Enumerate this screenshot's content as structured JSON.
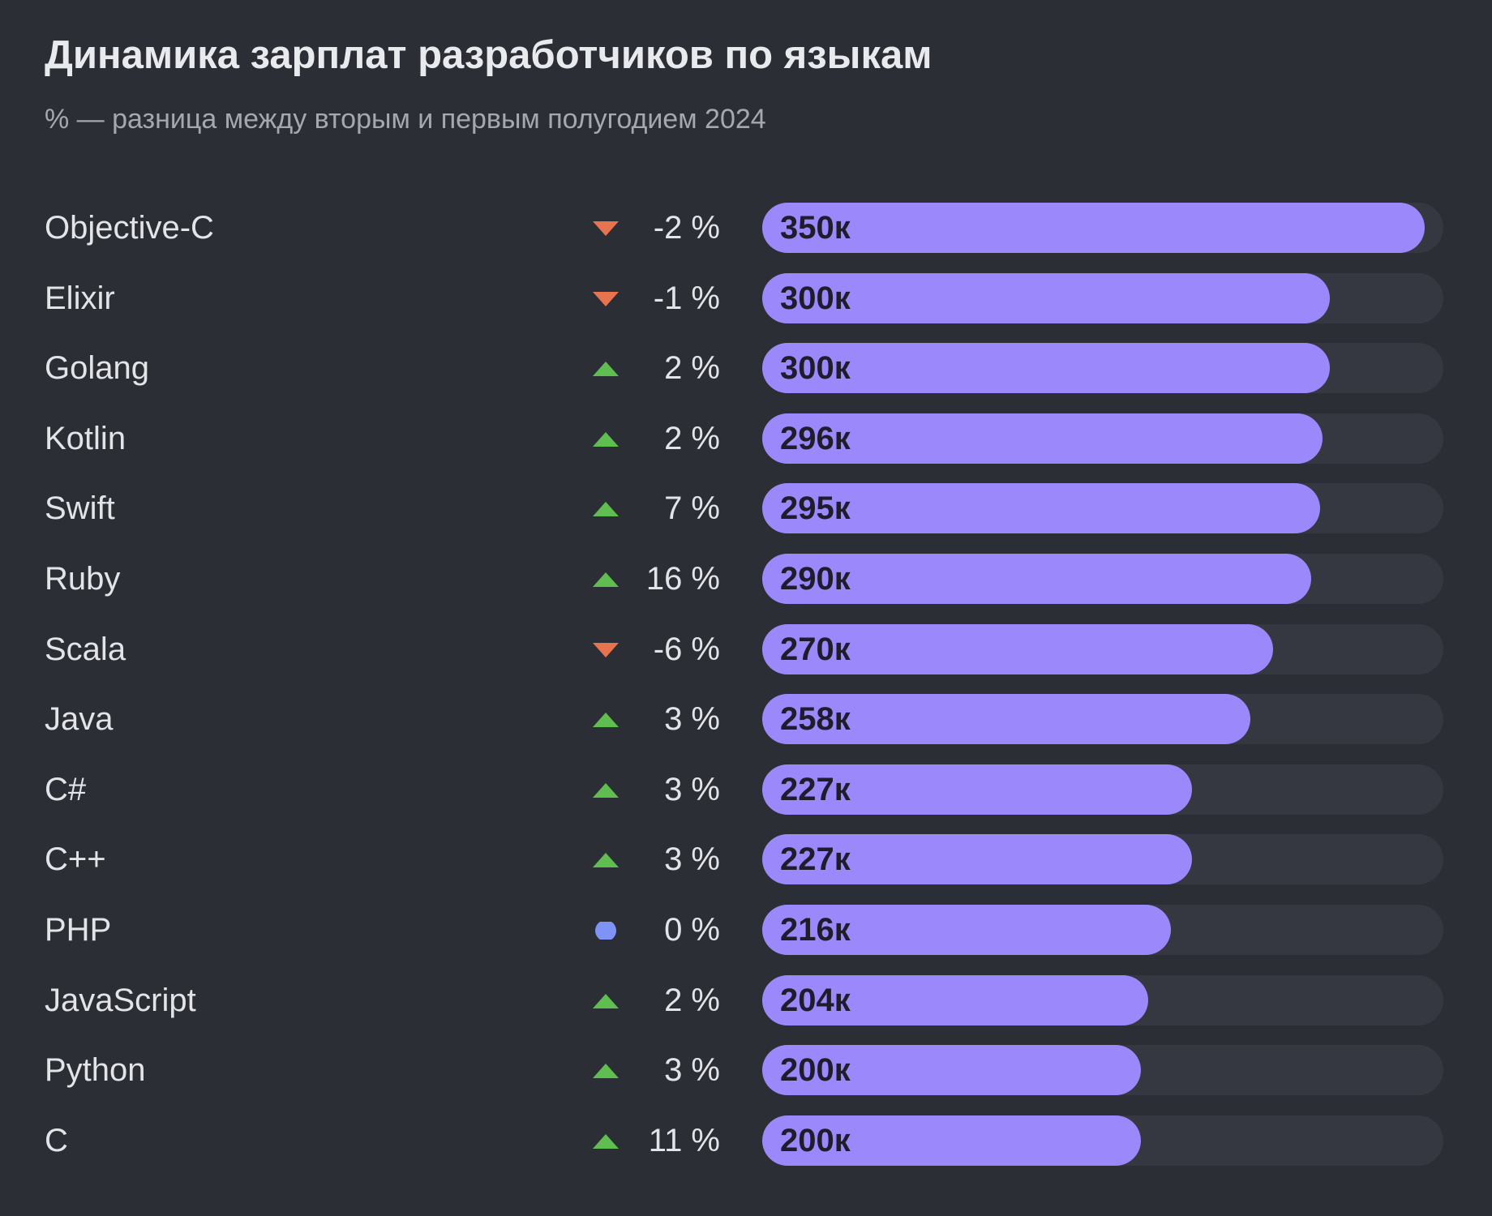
{
  "title": "Динамика зарплат разработчиков по языкам",
  "subtitle": "% — разница между вторым и первым полугодием 2024",
  "colors": {
    "background": "#2c2e35",
    "bar": "#9b88fb",
    "track": "#363841",
    "up": "#5fbe4f",
    "down": "#e8744f",
    "neutral": "#7f93f5"
  },
  "chart_data": {
    "type": "bar",
    "orientation": "horizontal",
    "title": "Динамика зарплат разработчиков по языкам",
    "subtitle": "% — разница между вторым и первым полугодием 2024",
    "xlim": [
      0,
      360
    ],
    "unit_suffix": "к",
    "rows": [
      {
        "language": "Objective-C",
        "trend": "down",
        "change_label": "-2 %",
        "change": -2,
        "value": 350,
        "value_label": "350к"
      },
      {
        "language": "Elixir",
        "trend": "down",
        "change_label": "-1 %",
        "change": -1,
        "value": 300,
        "value_label": "300к"
      },
      {
        "language": "Golang",
        "trend": "up",
        "change_label": "2 %",
        "change": 2,
        "value": 300,
        "value_label": "300к"
      },
      {
        "language": "Kotlin",
        "trend": "up",
        "change_label": "2 %",
        "change": 2,
        "value": 296,
        "value_label": "296к"
      },
      {
        "language": "Swift",
        "trend": "up",
        "change_label": "7 %",
        "change": 7,
        "value": 295,
        "value_label": "295к"
      },
      {
        "language": "Ruby",
        "trend": "up",
        "change_label": "16 %",
        "change": 16,
        "value": 290,
        "value_label": "290к"
      },
      {
        "language": "Scala",
        "trend": "down",
        "change_label": "-6 %",
        "change": -6,
        "value": 270,
        "value_label": "270к"
      },
      {
        "language": "Java",
        "trend": "up",
        "change_label": "3 %",
        "change": 3,
        "value": 258,
        "value_label": "258к"
      },
      {
        "language": "C#",
        "trend": "up",
        "change_label": "3 %",
        "change": 3,
        "value": 227,
        "value_label": "227к"
      },
      {
        "language": "C++",
        "trend": "up",
        "change_label": "3 %",
        "change": 3,
        "value": 227,
        "value_label": "227к"
      },
      {
        "language": "PHP",
        "trend": "neutral",
        "change_label": "0 %",
        "change": 0,
        "value": 216,
        "value_label": "216к"
      },
      {
        "language": "JavaScript",
        "trend": "up",
        "change_label": "2 %",
        "change": 2,
        "value": 204,
        "value_label": "204к"
      },
      {
        "language": "Python",
        "trend": "up",
        "change_label": "3 %",
        "change": 3,
        "value": 200,
        "value_label": "200к"
      },
      {
        "language": "C",
        "trend": "up",
        "change_label": "11 %",
        "change": 11,
        "value": 200,
        "value_label": "200к"
      }
    ]
  }
}
